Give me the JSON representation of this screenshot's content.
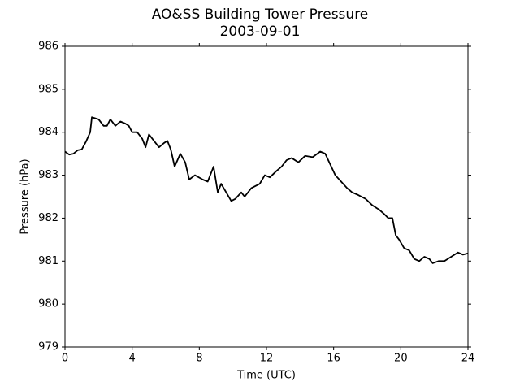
{
  "chart_data": {
    "type": "line",
    "title": "AO&SS Building Tower Pressure",
    "subtitle": "2003-09-01",
    "x_label": "Time (UTC)",
    "y_label": "Pressure (hPa)",
    "x": [
      0,
      0.25,
      0.5,
      0.75,
      1.0,
      1.25,
      1.5,
      1.6,
      2.0,
      2.3,
      2.5,
      2.7,
      3.0,
      3.3,
      3.6,
      3.8,
      4.0,
      4.3,
      4.6,
      4.8,
      5.0,
      5.3,
      5.6,
      5.9,
      6.1,
      6.3,
      6.53,
      6.87,
      7.16,
      7.4,
      7.74,
      8.2,
      8.5,
      8.85,
      9.1,
      9.3,
      9.6,
      9.9,
      10.15,
      10.5,
      10.7,
      11.1,
      11.6,
      11.9,
      12.2,
      12.6,
      12.9,
      13.2,
      13.5,
      13.9,
      14.3,
      14.75,
      15.2,
      15.5,
      15.8,
      16.1,
      16.45,
      16.8,
      17.1,
      17.4,
      17.9,
      18.3,
      18.7,
      19.0,
      19.25,
      19.5,
      19.7,
      19.9,
      20.2,
      20.5,
      20.8,
      21.1,
      21.4,
      21.7,
      21.9,
      22.25,
      22.6,
      23.0,
      23.4,
      23.7,
      24.0
    ],
    "series": [
      {
        "name": "Pressure",
        "color": "#000000",
        "values": [
          983.55,
          983.48,
          983.5,
          983.58,
          983.6,
          983.78,
          984.0,
          984.35,
          984.3,
          984.15,
          984.15,
          984.3,
          984.15,
          984.25,
          984.2,
          984.15,
          984.0,
          984.0,
          983.85,
          983.65,
          983.95,
          983.8,
          983.65,
          983.75,
          983.8,
          983.6,
          983.2,
          983.5,
          983.3,
          982.9,
          983.0,
          982.9,
          982.85,
          983.2,
          982.6,
          982.8,
          982.6,
          982.4,
          982.45,
          982.6,
          982.5,
          982.7,
          982.8,
          983.0,
          982.95,
          983.1,
          983.2,
          983.35,
          983.4,
          983.3,
          983.45,
          983.42,
          983.55,
          983.5,
          983.25,
          983.0,
          982.85,
          982.7,
          982.6,
          982.55,
          982.45,
          982.3,
          982.2,
          982.1,
          982.0,
          982.0,
          981.6,
          981.5,
          981.3,
          981.25,
          981.05,
          981.0,
          981.1,
          981.05,
          980.95,
          981.0,
          981.0,
          981.1,
          981.2,
          981.15,
          981.18
        ]
      }
    ],
    "xlim": [
      0,
      24
    ],
    "xticks": [
      0,
      4,
      8,
      12,
      16,
      20,
      24
    ],
    "ylim": [
      979,
      986
    ],
    "yticks": [
      979,
      980,
      981,
      982,
      983,
      984,
      985,
      986
    ],
    "grid": false
  }
}
